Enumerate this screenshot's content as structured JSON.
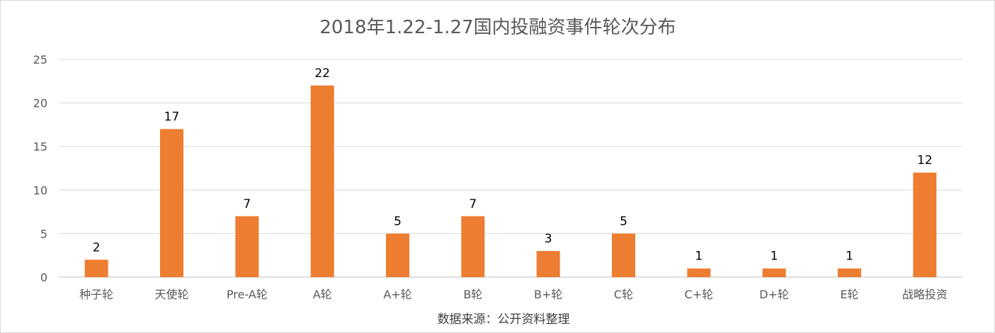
{
  "chart_data": {
    "type": "bar",
    "title": "2018年1.22-1.27国内投融资事件轮次分布",
    "categories": [
      "种子轮",
      "天使轮",
      "Pre-A轮",
      "A轮",
      "A+轮",
      "B轮",
      "B+轮",
      "C轮",
      "C+轮",
      "D+轮",
      "E轮",
      "战略投资"
    ],
    "values": [
      2,
      17,
      7,
      22,
      5,
      7,
      3,
      5,
      1,
      1,
      1,
      12
    ],
    "ylim": [
      0,
      25
    ],
    "yticks": [
      0,
      5,
      10,
      15,
      20,
      25
    ],
    "grid": true,
    "legend": "none",
    "source": "数据来源：公开资料整理",
    "bar_color": "#ED7D31"
  }
}
